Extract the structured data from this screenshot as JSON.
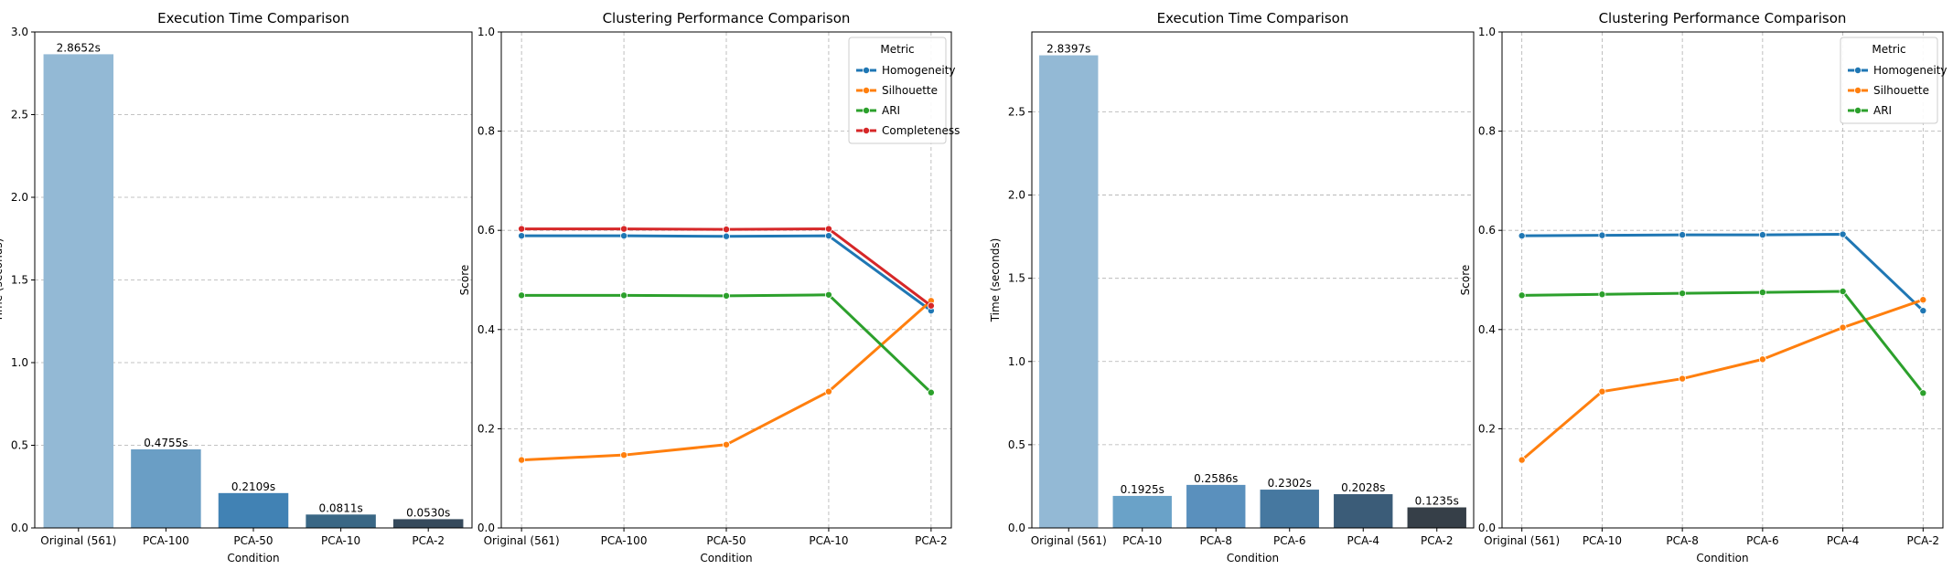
{
  "chart_data": [
    {
      "type": "bar",
      "title": "Execution Time Comparison",
      "xlabel": "Condition",
      "ylabel": "Time (seconds)",
      "ylim": [
        0,
        3.0
      ],
      "yticks": [
        0.0,
        0.5,
        1.0,
        1.5,
        2.0,
        2.5,
        3.0
      ],
      "ytick_labels": [
        "0.0",
        "0.5",
        "1.0",
        "1.5",
        "2.0",
        "2.5",
        "3.0"
      ],
      "grid": "y",
      "categories": [
        "Original (561)",
        "PCA-100",
        "PCA-50",
        "PCA-10",
        "PCA-2"
      ],
      "values": [
        2.8652,
        0.4755,
        0.2109,
        0.0811,
        0.053
      ],
      "data_labels": [
        "2.8652s",
        "0.4755s",
        "0.2109s",
        "0.0811s",
        "0.0530s"
      ],
      "colors": [
        "#93b9d5",
        "#6a9ec5",
        "#4182b4",
        "#3a6785",
        "#364a5c"
      ]
    },
    {
      "type": "line",
      "title": "Clustering Performance Comparison",
      "xlabel": "Condition",
      "ylabel": "Score",
      "ylim": [
        0,
        1.0
      ],
      "yticks": [
        0.0,
        0.2,
        0.4,
        0.6,
        0.8,
        1.0
      ],
      "ytick_labels": [
        "0.0",
        "0.2",
        "0.4",
        "0.6",
        "0.8",
        "1.0"
      ],
      "grid": "both",
      "legend_title": "Metric",
      "legend_position": "top-right",
      "categories": [
        "Original (561)",
        "PCA-100",
        "PCA-50",
        "PCA-10",
        "PCA-2"
      ],
      "series": [
        {
          "name": "Homogeneity",
          "color": "#1f77b4",
          "values": [
            0.589,
            0.589,
            0.588,
            0.589,
            0.438
          ]
        },
        {
          "name": "Silhouette",
          "color": "#ff7f0e",
          "values": [
            0.137,
            0.147,
            0.168,
            0.275,
            0.458
          ]
        },
        {
          "name": "ARI",
          "color": "#2ca02c",
          "values": [
            0.469,
            0.469,
            0.468,
            0.47,
            0.273
          ]
        },
        {
          "name": "Completeness",
          "color": "#d62728",
          "values": [
            0.603,
            0.603,
            0.602,
            0.603,
            0.448
          ]
        }
      ]
    },
    {
      "type": "bar",
      "title": "Execution Time Comparison",
      "xlabel": "Condition",
      "ylabel": "Time (seconds)",
      "ylim": [
        0,
        2.98
      ],
      "yticks": [
        0.0,
        0.5,
        1.0,
        1.5,
        2.0,
        2.5
      ],
      "ytick_labels": [
        "0.0",
        "0.5",
        "1.0",
        "1.5",
        "2.0",
        "2.5"
      ],
      "grid": "y",
      "categories": [
        "Original (561)",
        "PCA-10",
        "PCA-8",
        "PCA-6",
        "PCA-4",
        "PCA-2"
      ],
      "values": [
        2.8397,
        0.1925,
        0.2586,
        0.2302,
        0.2028,
        0.1235
      ],
      "data_labels": [
        "2.8397s",
        "0.1925s",
        "0.2586s",
        "0.2302s",
        "0.2028s",
        "0.1235s"
      ],
      "colors": [
        "#93b9d5",
        "#6aa2c8",
        "#5a90bd",
        "#4678a0",
        "#3b5c78",
        "#363f48"
      ]
    },
    {
      "type": "line",
      "title": "Clustering Performance Comparison",
      "xlabel": "Condition",
      "ylabel": "Score",
      "ylim": [
        0,
        1.0
      ],
      "yticks": [
        0.0,
        0.2,
        0.4,
        0.6,
        0.8,
        1.0
      ],
      "ytick_labels": [
        "0.0",
        "0.2",
        "0.4",
        "0.6",
        "0.8",
        "1.0"
      ],
      "grid": "both",
      "legend_title": "Metric",
      "legend_position": "top-right",
      "categories": [
        "Original (561)",
        "PCA-10",
        "PCA-8",
        "PCA-6",
        "PCA-4",
        "PCA-2"
      ],
      "series": [
        {
          "name": "Homogeneity",
          "color": "#1f77b4",
          "values": [
            0.589,
            0.59,
            0.591,
            0.591,
            0.592,
            0.438
          ]
        },
        {
          "name": "Silhouette",
          "color": "#ff7f0e",
          "values": [
            0.137,
            0.275,
            0.301,
            0.34,
            0.404,
            0.46
          ]
        },
        {
          "name": "ARI",
          "color": "#2ca02c",
          "values": [
            0.469,
            0.471,
            0.473,
            0.475,
            0.477,
            0.272
          ]
        }
      ]
    }
  ]
}
